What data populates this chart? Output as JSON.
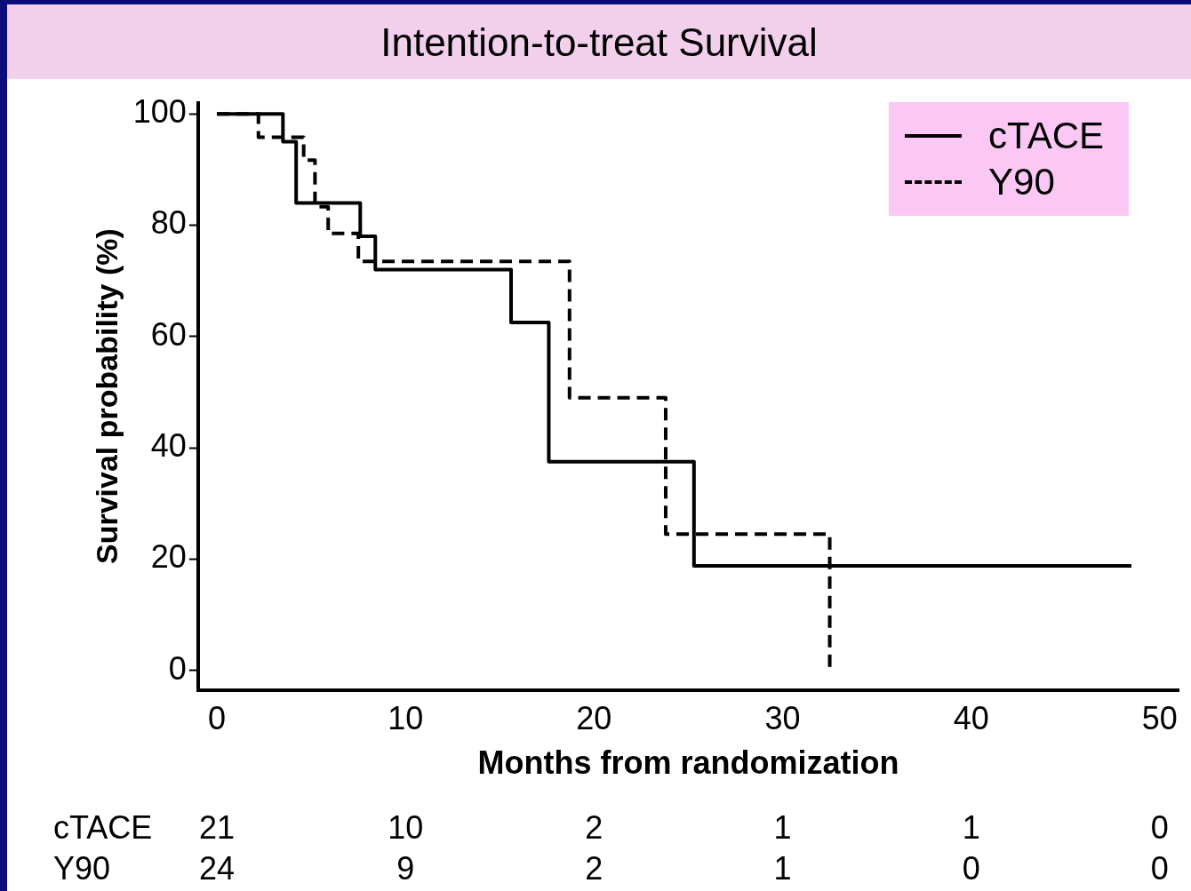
{
  "chart_data": {
    "type": "step",
    "title": "Intention-to-treat Survival",
    "xlabel": "Months from randomization",
    "ylabel": "Survival probability (%)",
    "xlim": [
      -1,
      51
    ],
    "xticks": [
      0,
      10,
      20,
      30,
      40,
      50
    ],
    "ylim": [
      -3.5,
      102
    ],
    "yticks": [
      0,
      20,
      40,
      60,
      80,
      100
    ],
    "grid": false,
    "legend": "top right",
    "series": [
      {
        "name": "cTACE",
        "color": "#000000",
        "line_style": "solid",
        "x": [
          0,
          3.5,
          4.2,
          7.6,
          8.4,
          15.6,
          17.6,
          25.3,
          48.5
        ],
        "values": [
          100,
          95,
          84,
          78,
          72,
          62.5,
          37.5,
          18.8,
          18.8
        ]
      },
      {
        "name": "Y90",
        "color": "#000000",
        "line_style": "dashed",
        "x": [
          0,
          2.2,
          4.6,
          5.2,
          5.9,
          7.5,
          18.7,
          23.8,
          32.5
        ],
        "values": [
          100,
          95.8,
          91.7,
          83.3,
          78.5,
          73.5,
          49,
          24.5,
          0
        ]
      }
    ],
    "annotations": [
      "cTACE",
      "21",
      "10",
      "2",
      "1",
      "1",
      "0",
      "Y90",
      "24",
      "9",
      "2",
      "1",
      "0",
      "0"
    ]
  }
}
